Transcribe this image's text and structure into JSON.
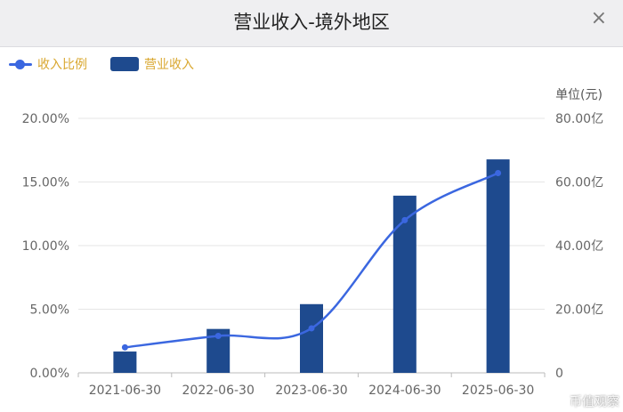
{
  "header": {
    "title": "营业收入-境外地区",
    "close_label": "×"
  },
  "legend": [
    {
      "name": "收入比例",
      "kind": "line"
    },
    {
      "name": "营业收入",
      "kind": "bar"
    }
  ],
  "unit_label": "单位(元)",
  "watermark": "币值观察",
  "chart_data": {
    "type": "bar",
    "categories": [
      "2021-06-30",
      "2022-06-30",
      "2023-06-30",
      "2024-06-30",
      "2025-06-30"
    ],
    "series": [
      {
        "name": "营业收入",
        "type": "bar",
        "axis": "right",
        "values": [
          6.7,
          13.8,
          21.6,
          55.7,
          67.1
        ]
      },
      {
        "name": "收入比例",
        "type": "line",
        "axis": "left",
        "values": [
          2.0,
          2.9,
          3.5,
          12.0,
          15.7
        ]
      }
    ],
    "left_axis": {
      "ticks": [
        "0.00%",
        "5.00%",
        "10.00%",
        "15.00%",
        "20.00%"
      ],
      "range": [
        0,
        20
      ]
    },
    "right_axis": {
      "ticks": [
        "0",
        "20.00亿",
        "40.00亿",
        "60.00亿",
        "80.00亿"
      ],
      "range": [
        0,
        80
      ]
    },
    "grid": true,
    "legend_position": "top-left",
    "colors": {
      "bar": "#1e4a8e",
      "line": "#3b67e0"
    }
  }
}
